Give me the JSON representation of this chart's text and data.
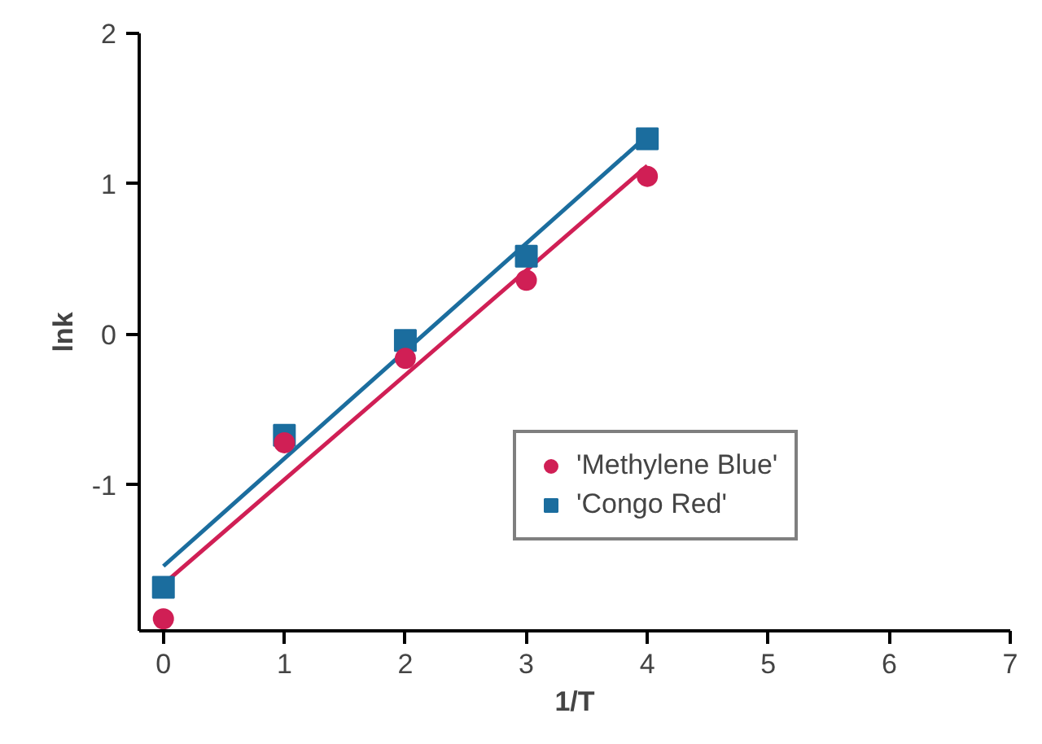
{
  "chart_data": {
    "type": "scatter",
    "xlabel": "1/T",
    "ylabel": "lnk",
    "xlim": [
      -0.2,
      7
    ],
    "ylim": [
      -1.97,
      2
    ],
    "xticks": [
      0,
      1,
      2,
      3,
      4,
      5,
      6,
      7
    ],
    "yticks": [
      -1,
      0,
      1,
      2
    ],
    "grid": false,
    "legend": "right",
    "series": [
      {
        "name": "'Methylene Blue'",
        "color": "#d01f55",
        "marker": "circle",
        "x": [
          0,
          1,
          2,
          3,
          4
        ],
        "values": [
          -1.89,
          -0.72,
          -0.16,
          0.36,
          1.05
        ]
      },
      {
        "name": "'Congo Red'",
        "color": "#1b6d9e",
        "marker": "square",
        "x": [
          0,
          1,
          2,
          3,
          4
        ],
        "values": [
          -1.68,
          -0.67,
          -0.04,
          0.52,
          1.3
        ]
      },
      {
        "type": "line",
        "color": "#d01f55",
        "x": [
          0,
          4
        ],
        "values": [
          -1.66,
          1.12
        ]
      },
      {
        "type": "line",
        "color": "#1b6d9e",
        "x": [
          0,
          4
        ],
        "values": [
          -1.54,
          1.32
        ]
      }
    ]
  }
}
